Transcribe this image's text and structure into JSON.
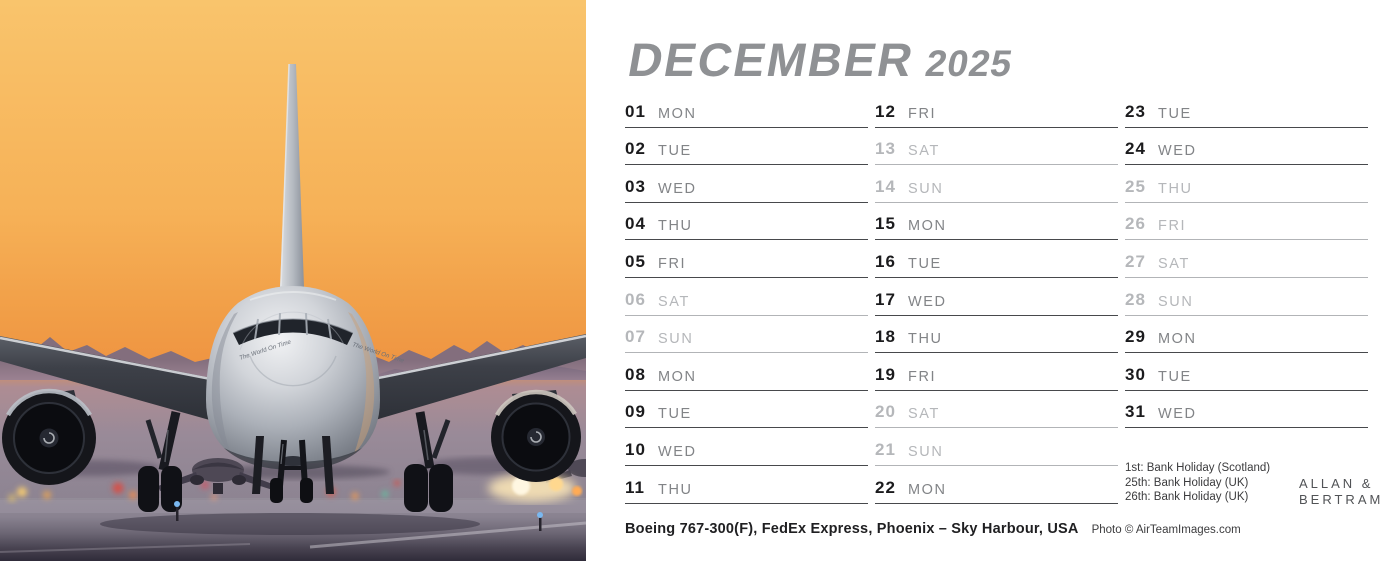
{
  "title": {
    "month": "DECEMBER",
    "year": "2025"
  },
  "calendar": {
    "columns": [
      {
        "days": [
          {
            "num": "01",
            "dow": "MON",
            "muted": false
          },
          {
            "num": "02",
            "dow": "TUE",
            "muted": false
          },
          {
            "num": "03",
            "dow": "WED",
            "muted": false
          },
          {
            "num": "04",
            "dow": "THU",
            "muted": false
          },
          {
            "num": "05",
            "dow": "FRI",
            "muted": false
          },
          {
            "num": "06",
            "dow": "SAT",
            "muted": true
          },
          {
            "num": "07",
            "dow": "SUN",
            "muted": true
          },
          {
            "num": "08",
            "dow": "MON",
            "muted": false
          },
          {
            "num": "09",
            "dow": "TUE",
            "muted": false
          },
          {
            "num": "10",
            "dow": "WED",
            "muted": false
          },
          {
            "num": "11",
            "dow": "THU",
            "muted": false
          }
        ]
      },
      {
        "days": [
          {
            "num": "12",
            "dow": "FRI",
            "muted": false
          },
          {
            "num": "13",
            "dow": "SAT",
            "muted": true
          },
          {
            "num": "14",
            "dow": "SUN",
            "muted": true
          },
          {
            "num": "15",
            "dow": "MON",
            "muted": false
          },
          {
            "num": "16",
            "dow": "TUE",
            "muted": false
          },
          {
            "num": "17",
            "dow": "WED",
            "muted": false
          },
          {
            "num": "18",
            "dow": "THU",
            "muted": false
          },
          {
            "num": "19",
            "dow": "FRI",
            "muted": false
          },
          {
            "num": "20",
            "dow": "SAT",
            "muted": true
          },
          {
            "num": "21",
            "dow": "SUN",
            "muted": true
          },
          {
            "num": "22",
            "dow": "MON",
            "muted": false
          }
        ]
      },
      {
        "days": [
          {
            "num": "23",
            "dow": "TUE",
            "muted": false
          },
          {
            "num": "24",
            "dow": "WED",
            "muted": false
          },
          {
            "num": "25",
            "dow": "THU",
            "muted": true
          },
          {
            "num": "26",
            "dow": "FRI",
            "muted": true
          },
          {
            "num": "27",
            "dow": "SAT",
            "muted": true
          },
          {
            "num": "28",
            "dow": "SUN",
            "muted": true
          },
          {
            "num": "29",
            "dow": "MON",
            "muted": false
          },
          {
            "num": "30",
            "dow": "TUE",
            "muted": false
          },
          {
            "num": "31",
            "dow": "WED",
            "muted": false
          }
        ]
      }
    ]
  },
  "holiday_notes": [
    "1st: Bank Holiday (Scotland)",
    "25th: Bank Holiday (UK)",
    "26th: Bank Holiday (UK)"
  ],
  "brand": {
    "line1": "ALLAN &",
    "line2": "BERTRAM"
  },
  "caption": {
    "main": "Boeing 767-300(F), FedEx Express, Phoenix – Sky Harbour, USA",
    "credit": "Photo © AirTeamImages.com"
  },
  "photo": {
    "fuselage_text": "The World On Time"
  },
  "colors": {
    "sky_top": "#f9c46c",
    "sky_horizon": "#ee9140",
    "title": "#8f9194",
    "day_number": "#1b1b1d",
    "day_name": "#828487",
    "muted": "#b5b7ba",
    "rule_active": "#47494c",
    "rule_muted": "#b2b4b7"
  }
}
